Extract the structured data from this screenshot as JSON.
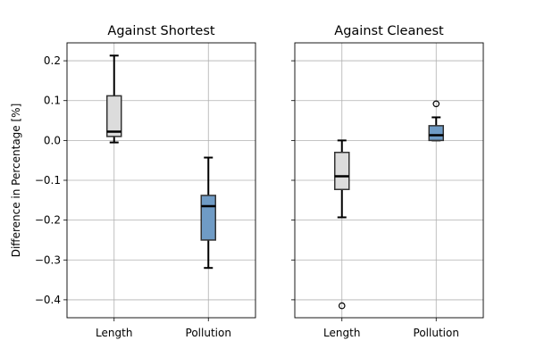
{
  "figure": {
    "ylabel": "Difference in Percentage [%]"
  },
  "chart_data": [
    {
      "type": "box",
      "title": "Against Shortest",
      "ylabel": "Difference in Percentage [%]",
      "ylim": [
        -0.445,
        0.245
      ],
      "yticks": [
        -0.4,
        -0.3,
        -0.2,
        -0.1,
        0.0,
        0.1,
        0.2
      ],
      "ytick_labels": [
        "−0.4",
        "−0.3",
        "−0.2",
        "−0.1",
        "0.0",
        "0.1",
        "0.2"
      ],
      "show_ytick_labels": true,
      "grid": true,
      "categories": [
        "Length",
        "Pollution"
      ],
      "boxes": [
        {
          "name": "Length",
          "whisker_low": -0.005,
          "q1": 0.01,
          "median": 0.022,
          "q3": 0.112,
          "whisker_high": 0.213,
          "outliers": [],
          "color": "#dcdcdc"
        },
        {
          "name": "Pollution",
          "whisker_low": -0.32,
          "q1": -0.25,
          "median": -0.165,
          "q3": -0.138,
          "whisker_high": -0.043,
          "outliers": [],
          "color": "#6f9bc5"
        }
      ]
    },
    {
      "type": "box",
      "title": "Against Cleanest",
      "ylabel": "",
      "ylim": [
        -0.445,
        0.245
      ],
      "yticks": [
        -0.4,
        -0.3,
        -0.2,
        -0.1,
        0.0,
        0.1,
        0.2
      ],
      "ytick_labels": [],
      "show_ytick_labels": false,
      "grid": true,
      "categories": [
        "Length",
        "Pollution"
      ],
      "boxes": [
        {
          "name": "Length",
          "whisker_low": -0.193,
          "q1": -0.123,
          "median": -0.09,
          "q3": -0.03,
          "whisker_high": 0.0,
          "outliers": [
            -0.415
          ],
          "color": "#dcdcdc"
        },
        {
          "name": "Pollution",
          "whisker_low": 0.0,
          "q1": 0.0,
          "median": 0.013,
          "q3": 0.037,
          "whisker_high": 0.058,
          "outliers": [
            0.092
          ],
          "color": "#6f9bc5"
        }
      ]
    }
  ]
}
